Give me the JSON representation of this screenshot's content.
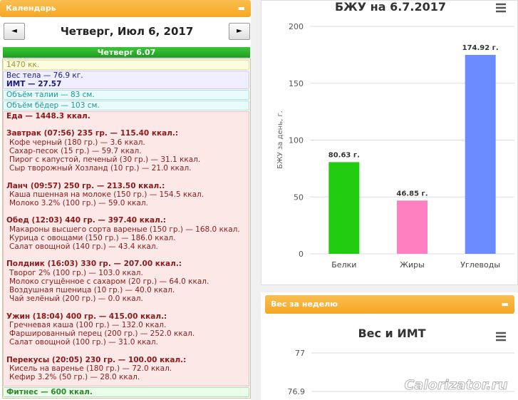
{
  "calendar_panel": {
    "header": "Календарь",
    "date_title": "Четверг, Июл 6, 2017",
    "day_header": "Четверг 6.07",
    "calories": "1470 кк.",
    "weight": "Вес тела — 76.9 кг.",
    "bmi": "ИМТ — 27.57",
    "waist": "Объём талии — 83 см.",
    "hips": "Объём бёдер — 103 см.",
    "food_total": "Еда — 1448.3 ккал.",
    "meals": [
      {
        "title": "Завтрак (07:56) 235 гр. — 115.40 ккал.:",
        "items": [
          "Кофе черный (180 гр.) — 3.6 ккал.",
          "Сахар-песок (15 гр.) — 59.7 ккал.",
          "Пирог с капустой, печеный (30 гр.) — 31.1 ккал.",
          "Сыр творожный Хозланд (10 гр.) — 21.0 ккал."
        ]
      },
      {
        "title": "Ланч (09:57) 250 гр. — 213.50 ккал.:",
        "items": [
          "Каша пшенная на молоке (150 гр.) — 154.5 ккал.",
          "Молоко 3.2% (100 гр.) — 59.0 ккал."
        ]
      },
      {
        "title": "Обед (12:03) 440 гр. — 397.40 ккал.:",
        "items": [
          "Макароны высшего сорта вареные (150 гр.) — 168.0 ккал.",
          "Курица с овощами (150 гр.) — 186.0 ккал.",
          "Салат овощной (140 гр.) — 43.4 ккал."
        ]
      },
      {
        "title": "Полдник (16:03) 330 гр. — 207.00 ккал.:",
        "items": [
          "Творог 2% (100 гр.) — 103.0 ккал.",
          "Молоко сгущённое с сахаром (20 гр.) — 64.0 ккал.",
          "Воздушная пшеница (10 гр.) — 40.0 ккал.",
          "Чай зелёный (200 гр.) — 0.0 ккал."
        ]
      },
      {
        "title": "Ужин (18:04) 400 гр. — 415.00 ккал.:",
        "items": [
          "Гречневая каша (100 гр.) — 132.0 ккал.",
          "Фаршированный перец (200 гр.) — 252.0 ккал.",
          "Салат овощной (100 гр.) — 31.0 ккал."
        ]
      },
      {
        "title": "Перекусы (20:05) 230 гр. — 100.00 ккал.:",
        "items": [
          "Кисель на варенье (180 гр.) — 72.0 ккал.",
          "Кефир 3.2% (50 гр.) — 28.0 ккал."
        ]
      }
    ],
    "fitness": "Фитнес — 600 ккал."
  },
  "bju_chart": {
    "type": "bar",
    "title": "БЖУ на 6.7.2017",
    "y_label": "БЖУ за день, г.",
    "categories": [
      "Белки",
      "Жиры",
      "Углеводы"
    ],
    "values": [
      80.63,
      46.85,
      174.92
    ],
    "value_labels": [
      "80.63 г.",
      "46.85 г.",
      "174.92 г."
    ],
    "colors": [
      "#22cc11",
      "#ff80c0",
      "#6b8cff"
    ],
    "ylim": [
      0,
      200
    ],
    "yticks": [
      0,
      50,
      100,
      150,
      200
    ],
    "grid": true
  },
  "weight_panel": {
    "header": "Вес за неделю",
    "chart": {
      "title": "Вес и ИМТ",
      "ylim": [
        76.9,
        77
      ],
      "yticks": [
        77,
        76.9
      ],
      "grid": true
    }
  },
  "watermark": "Calorizator.ru"
}
